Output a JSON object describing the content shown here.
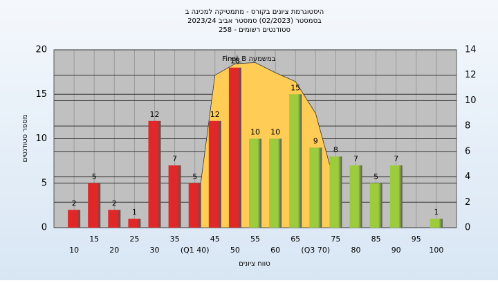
{
  "chart_data": {
    "type": "bar",
    "title": "היסטוגרמת ציונים בקורס - מתמטיקה למכינה ב",
    "subtitle": "בסמסטר  (02/2023)  סמסטר אביב 2023/24",
    "subtitle2": "סטודנטים רשומים - 258",
    "x_label": "טווח ציונים",
    "y_label": "מספר סטודנטים",
    "categories": [
      "10",
      "15",
      "20",
      "25",
      "30",
      "35",
      "(Q1 40)",
      "45",
      "50",
      "55",
      "60",
      "65",
      "(Q3 70)",
      "75",
      "80",
      "85",
      "90",
      "95",
      "100"
    ],
    "values": [
      2,
      5,
      2,
      1,
      12,
      7,
      5,
      12,
      18,
      10,
      10,
      15,
      9,
      8,
      7,
      5,
      7,
      null,
      1
    ],
    "colors": [
      "#e02828",
      "#e02828",
      "#e02828",
      "#e02828",
      "#e02828",
      "#e02828",
      "#e02828",
      "#e02828",
      "#e02828",
      "#9ccc3c",
      "#9ccc3c",
      "#9ccc3c",
      "#9ccc3c",
      "#9ccc3c",
      "#9ccc3c",
      "#9ccc3c",
      "#9ccc3c",
      "#9ccc3c",
      "#9ccc3c"
    ],
    "ylim": [
      0,
      20
    ],
    "yticks": [
      0,
      5,
      10,
      15,
      20
    ],
    "y2lim": [
      0,
      14
    ],
    "y2ticks": [
      0,
      2,
      4,
      6,
      8,
      10,
      12,
      14
    ],
    "xlim": [
      5,
      105
    ],
    "area": {
      "name": "Final_B במשמעה",
      "color": "#ffcc55",
      "axis": "y2",
      "x": [
        40,
        45,
        50,
        55,
        60,
        65,
        70,
        75
      ],
      "values": [
        0,
        12,
        12.9,
        13,
        12.2,
        11.5,
        9,
        3.2
      ]
    },
    "grid": true
  }
}
